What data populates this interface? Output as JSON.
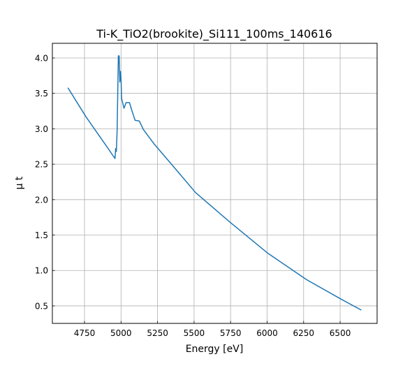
{
  "chart_data": {
    "type": "line",
    "title": "Ti-K_TiO2(brookite)_Si111_100ms_140616",
    "xlabel": "Energy [eV]",
    "ylabel": "μ t",
    "xlim": [
      4530,
      6753
    ],
    "ylim": [
      0.253,
      4.207
    ],
    "xticks": [
      4750,
      5000,
      5250,
      5500,
      5750,
      6000,
      6250,
      6500
    ],
    "yticks": [
      0.5,
      1.0,
      1.5,
      2.0,
      2.5,
      3.0,
      3.5,
      4.0
    ],
    "xtick_labels": [
      "4750",
      "5000",
      "5250",
      "5500",
      "5750",
      "6000",
      "6250",
      "6500"
    ],
    "ytick_labels": [
      "0.5",
      "1.0",
      "1.5",
      "2.0",
      "2.5",
      "3.0",
      "3.5",
      "4.0"
    ],
    "grid": true,
    "series": [
      {
        "name": "mu t",
        "color": "#1f77b4",
        "x": [
          4636,
          4760,
          4892,
          4959,
          4963,
          4968,
          4973,
          4982,
          4987,
          4992,
          4997,
          5001,
          5004,
          5011,
          5020,
          5035,
          5058,
          5072,
          5096,
          5125,
          5153,
          5225,
          5358,
          5510,
          5747,
          6004,
          6270,
          6507,
          6645
        ],
        "y": [
          3.58,
          3.17,
          2.78,
          2.58,
          2.72,
          2.68,
          2.97,
          4.03,
          4.03,
          3.66,
          3.81,
          3.66,
          3.43,
          3.37,
          3.29,
          3.37,
          3.37,
          3.27,
          3.12,
          3.11,
          2.99,
          2.79,
          2.47,
          2.1,
          1.68,
          1.245,
          0.87,
          0.595,
          0.44
        ]
      }
    ]
  }
}
